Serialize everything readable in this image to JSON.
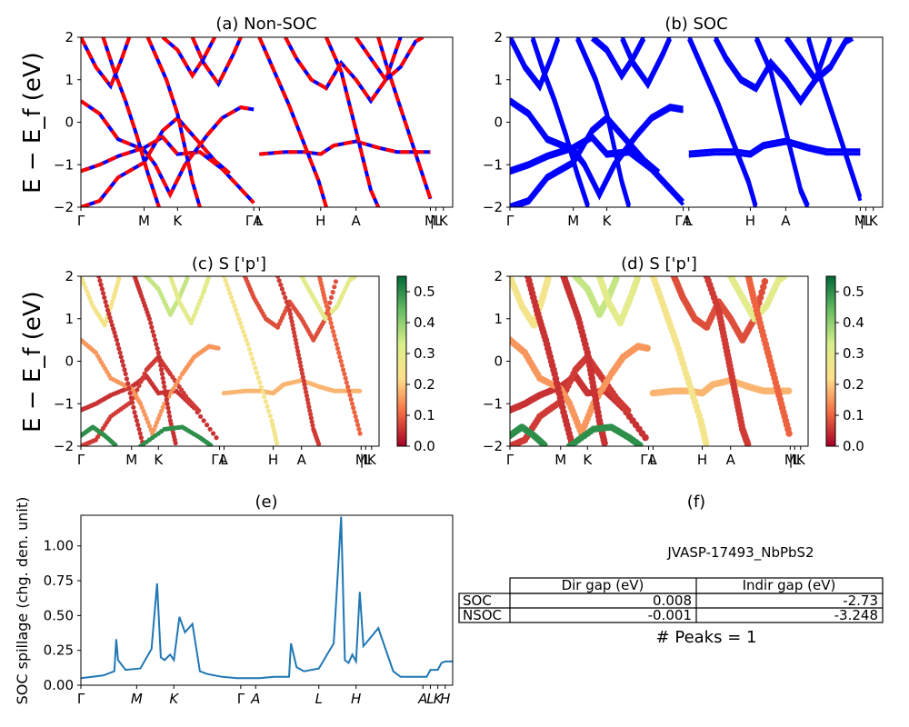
{
  "chart_data": [
    {
      "panel": "a",
      "type": "line",
      "title": "(a) Non-SOC",
      "ylabel": "E − E_f (eV)",
      "ylim": [
        -2,
        2
      ],
      "yticks": [
        "−2",
        "−1",
        "0",
        "1",
        "2"
      ],
      "xticks": [
        "Γ",
        "M",
        "K",
        "ΓA",
        "L",
        "H",
        "A",
        "M",
        "|L",
        "K"
      ],
      "colors": {
        "spin_up": "#ff0000",
        "spin_down": "#0000ff"
      }
    },
    {
      "panel": "b",
      "type": "line",
      "title": "(b) SOC",
      "ylim": [
        -2,
        2
      ],
      "yticks": [
        "−2",
        "−1",
        "0",
        "1",
        "2"
      ],
      "xticks": [
        "Γ",
        "M",
        "K",
        "ΓA",
        "L",
        "H",
        "A",
        "M",
        "|L",
        "K"
      ],
      "colors": {
        "bands": "#0000ff"
      }
    },
    {
      "panel": "c",
      "type": "scatter",
      "title": "(c)  S ['p']",
      "ylabel": "E − E_f (eV)",
      "ylim": [
        -2,
        2
      ],
      "yticks": [
        "−2",
        "−1",
        "0",
        "1",
        "2"
      ],
      "xticks": [
        "Γ",
        "M",
        "K",
        "ΓA",
        "L",
        "H",
        "A",
        "M",
        "|L",
        "K"
      ],
      "colorbar": {
        "cmap": "RdYlGn",
        "range": [
          0.0,
          0.55
        ],
        "ticks": [
          "0.0",
          "0.1",
          "0.2",
          "0.3",
          "0.4",
          "0.5"
        ]
      }
    },
    {
      "panel": "d",
      "type": "scatter",
      "title": "(d) S ['p']",
      "ylim": [
        -2,
        2
      ],
      "yticks": [
        "−2",
        "−1",
        "0",
        "1",
        "2"
      ],
      "xticks": [
        "Γ",
        "M",
        "K",
        "ΓA",
        "L",
        "H",
        "A",
        "M",
        "|L",
        "K"
      ],
      "colorbar": {
        "cmap": "RdYlGn",
        "range": [
          0.0,
          0.55
        ],
        "ticks": [
          "0.0",
          "0.1",
          "0.2",
          "0.3",
          "0.4",
          "0.5"
        ]
      }
    },
    {
      "panel": "e",
      "type": "line",
      "title": "(e)",
      "ylabel": "SOC spillage (chg. den. unit)",
      "ylim": [
        0,
        1.22
      ],
      "yticks": [
        "0.00",
        "0.25",
        "0.50",
        "0.75",
        "1.00"
      ],
      "xticks": [
        "Γ",
        "M",
        "K",
        "Γ",
        "A",
        "L",
        "H",
        "A",
        "L",
        "K",
        "H"
      ],
      "color": "#1f77b4",
      "x": [
        0,
        0.06,
        0.09,
        0.095,
        0.1,
        0.12,
        0.16,
        0.19,
        0.205,
        0.215,
        0.225,
        0.24,
        0.25,
        0.265,
        0.28,
        0.3,
        0.32,
        0.34,
        0.38,
        0.42,
        0.48,
        0.52,
        0.56,
        0.565,
        0.58,
        0.6,
        0.64,
        0.68,
        0.7,
        0.71,
        0.72,
        0.73,
        0.74,
        0.75,
        0.76,
        0.8,
        0.84,
        0.86,
        0.9,
        0.93,
        0.94,
        0.96,
        0.97,
        0.98,
        1.0
      ],
      "y": [
        0.05,
        0.07,
        0.1,
        0.33,
        0.18,
        0.11,
        0.12,
        0.26,
        0.73,
        0.2,
        0.18,
        0.22,
        0.18,
        0.49,
        0.38,
        0.44,
        0.1,
        0.08,
        0.06,
        0.05,
        0.05,
        0.06,
        0.06,
        0.3,
        0.13,
        0.1,
        0.12,
        0.3,
        1.21,
        0.18,
        0.16,
        0.22,
        0.17,
        0.67,
        0.28,
        0.41,
        0.1,
        0.06,
        0.06,
        0.06,
        0.11,
        0.11,
        0.16,
        0.17,
        0.17
      ]
    },
    {
      "panel": "f",
      "type": "table",
      "title": "(f)",
      "caption": "JVASP-17493_NbPbS2",
      "columns": [
        "",
        "Dir gap (eV)",
        "Indir gap (eV)"
      ],
      "rows": [
        [
          "SOC",
          "0.008",
          "-2.73"
        ],
        [
          "NSOC",
          "-0.001",
          "-3.248"
        ]
      ],
      "footer": "# Peaks = 1"
    }
  ]
}
